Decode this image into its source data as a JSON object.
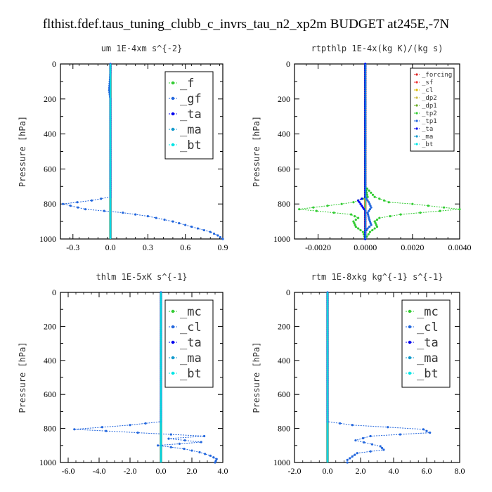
{
  "title": "flthist.fdef.taus_tuning_clubb_c_invrs_tau_n2_xp2m  BUDGET at245E,-7N",
  "chart_data": [
    {
      "type": "line",
      "title": "um   1E-4xm s^{-2}",
      "ylabel": "Pressure [hPa]",
      "xlim": [
        -0.4,
        0.9
      ],
      "ylim": [
        1000,
        0
      ],
      "xticks": [
        -0.3,
        0.0,
        0.3,
        0.6,
        0.9
      ],
      "xtick_labels": [
        "-0.3",
        "0.0",
        "0.3",
        "0.6",
        "0.9"
      ],
      "yticks": [
        0,
        200,
        400,
        600,
        800,
        1000
      ],
      "ytick_labels": [
        "0",
        "200",
        "400",
        "600",
        "800",
        "1000"
      ],
      "legend_position": "top-right",
      "legend_size": "large",
      "series": [
        {
          "name": "_f",
          "color": "#33cc33",
          "y": [
            0,
            1000
          ],
          "x": [
            0,
            0
          ]
        },
        {
          "name": "_gf",
          "color": "#2266dd",
          "y": [
            0,
            50,
            100,
            150,
            200,
            300,
            500,
            700,
            760,
            780,
            800,
            830,
            850,
            870,
            900,
            930,
            960,
            980,
            1000
          ],
          "x": [
            0.0,
            0.0,
            -0.005,
            -0.01,
            0.0,
            0.0,
            0.0,
            0.0,
            0.0,
            -0.15,
            -0.38,
            -0.2,
            0.1,
            0.3,
            0.5,
            0.65,
            0.8,
            0.86,
            0.9
          ]
        },
        {
          "name": "_ta",
          "color": "#0000ee",
          "y": [
            0,
            1000
          ],
          "x": [
            0,
            0
          ]
        },
        {
          "name": "_ma",
          "color": "#1199cc",
          "y": [
            0,
            1000
          ],
          "x": [
            0,
            0
          ]
        },
        {
          "name": "_bt",
          "color": "#00e5e5",
          "y": [
            0,
            1000
          ],
          "x": [
            0,
            0
          ]
        }
      ]
    },
    {
      "type": "line",
      "title": "rtpthlp   1E-4x(kg K)/(kg s)",
      "ylabel": "Pressure [hPa]",
      "xlim": [
        -0.003,
        0.004
      ],
      "ylim": [
        1000,
        0
      ],
      "xticks": [
        -0.002,
        0.0,
        0.002,
        0.004
      ],
      "xtick_labels": [
        "-0.0020",
        "0.0000",
        "0.0020",
        "0.0040"
      ],
      "yticks": [
        0,
        200,
        400,
        600,
        800,
        1000
      ],
      "ytick_labels": [
        "0",
        "200",
        "400",
        "600",
        "800",
        "1000"
      ],
      "legend_position": "top-right",
      "legend_size": "small",
      "series": [
        {
          "name": "_forcing",
          "color": "#dd2222",
          "y": [
            0,
            1000
          ],
          "x": [
            0,
            0
          ]
        },
        {
          "name": "_sf",
          "color": "#ee3333",
          "y": [
            0,
            1000
          ],
          "x": [
            0,
            0
          ]
        },
        {
          "name": "_cl",
          "color": "#ddbb00",
          "y": [
            0,
            1000
          ],
          "x": [
            0,
            0
          ]
        },
        {
          "name": "_dp2",
          "color": "#ccbb44",
          "y": [
            0,
            1000
          ],
          "x": [
            0,
            0
          ]
        },
        {
          "name": "_dp1",
          "color": "#66aa22",
          "y": [
            0,
            1000
          ],
          "x": [
            0,
            0
          ]
        },
        {
          "name": "_tp2",
          "color": "#33cc33",
          "y": [
            0,
            700,
            760,
            790,
            800,
            830,
            860,
            880,
            900,
            930,
            960,
            1000
          ],
          "x": [
            0.0,
            0.0,
            0.0001,
            -0.0005,
            -0.001,
            -0.0028,
            -0.0006,
            -0.0003,
            -0.0005,
            -0.0004,
            -0.0001,
            0.0
          ],
          "x2": [
            0.0,
            0.0,
            0.0004,
            0.001,
            0.002,
            0.004,
            0.0015,
            0.0006,
            0.0004,
            0.0005,
            0.0002,
            0.0
          ]
        },
        {
          "name": "_tp1",
          "color": "#2266dd",
          "y": [
            0,
            760,
            790,
            820,
            850,
            880,
            900,
            920,
            940,
            960,
            1000
          ],
          "x": [
            0.0,
            0.0,
            0.00015,
            0.00025,
            0.0001,
            0.00015,
            0.0002,
            0.00025,
            0.0001,
            0.0,
            0.0
          ]
        },
        {
          "name": "_ta",
          "color": "#0000ee",
          "y": [
            0,
            760,
            780,
            800,
            820,
            840,
            1000
          ],
          "x": [
            0.0,
            0.0,
            -0.0003,
            -0.0002,
            -0.0001,
            0.0,
            0.0
          ]
        },
        {
          "name": "_ma",
          "color": "#1199cc",
          "y": [
            0,
            1000
          ],
          "x": [
            0,
            0
          ]
        },
        {
          "name": "_bt",
          "color": "#00e5e5",
          "y": [
            0,
            1000
          ],
          "x": [
            0,
            0
          ]
        }
      ]
    },
    {
      "type": "line",
      "title": "thlm   1E-5xK s^{-1}",
      "ylabel": "Pressure [hPa]",
      "xlim": [
        -6.5,
        4.0
      ],
      "ylim": [
        1000,
        0
      ],
      "xticks": [
        -6.0,
        -4.0,
        -2.0,
        0.0,
        2.0,
        4.0
      ],
      "xtick_labels": [
        "-6.0",
        "-4.0",
        "-2.0",
        "0.0",
        "2.0",
        "4.0"
      ],
      "yticks": [
        0,
        200,
        400,
        600,
        800,
        1000
      ],
      "ytick_labels": [
        "0",
        "200",
        "400",
        "600",
        "800",
        "1000"
      ],
      "legend_position": "top-right",
      "legend_size": "large",
      "series": [
        {
          "name": "_mc",
          "color": "#33cc33",
          "y": [
            0,
            1000
          ],
          "x": [
            0,
            0
          ]
        },
        {
          "name": "_cl",
          "color": "#2266dd",
          "y": [
            0,
            700,
            760,
            780,
            805,
            825,
            845,
            860,
            880,
            900,
            920,
            940,
            960,
            980,
            1000
          ],
          "x": [
            0.0,
            0.0,
            0.0,
            -2.0,
            -5.6,
            -1.5,
            2.8,
            0.5,
            2.6,
            -0.2,
            1.5,
            2.5,
            3.2,
            3.6,
            3.5
          ]
        },
        {
          "name": "_ta",
          "color": "#0000ee",
          "y": [
            0,
            1000
          ],
          "x": [
            0,
            0
          ]
        },
        {
          "name": "_ma",
          "color": "#1199cc",
          "y": [
            0,
            1000
          ],
          "x": [
            0,
            0
          ]
        },
        {
          "name": "_bt",
          "color": "#00e5e5",
          "y": [
            0,
            1000
          ],
          "x": [
            0,
            0
          ]
        }
      ]
    },
    {
      "type": "line",
      "title": "rtm   1E-8xkg kg^{-1} s^{-1}",
      "ylabel": "Pressure [hPa]",
      "xlim": [
        -2.0,
        8.0
      ],
      "ylim": [
        1000,
        0
      ],
      "xticks": [
        -2.0,
        0.0,
        2.0,
        4.0,
        6.0,
        8.0
      ],
      "xtick_labels": [
        "-2.0",
        "0.0",
        "2.0",
        "4.0",
        "6.0",
        "8.0"
      ],
      "yticks": [
        0,
        200,
        400,
        600,
        800,
        1000
      ],
      "ytick_labels": [
        "0",
        "200",
        "400",
        "600",
        "800",
        "1000"
      ],
      "legend_position": "top-right",
      "legend_size": "large",
      "series": [
        {
          "name": "_mc",
          "color": "#33cc33",
          "y": [
            0,
            1000
          ],
          "x": [
            0,
            0
          ]
        },
        {
          "name": "_cl",
          "color": "#2266dd",
          "y": [
            0,
            700,
            760,
            780,
            805,
            825,
            845,
            870,
            905,
            925,
            945,
            965,
            985,
            1000
          ],
          "x": [
            0.0,
            0.0,
            0.0,
            1.5,
            5.8,
            6.2,
            2.6,
            1.7,
            3.2,
            3.4,
            1.8,
            1.5,
            1.2,
            1.2
          ]
        },
        {
          "name": "_ta",
          "color": "#0000ee",
          "y": [
            0,
            1000
          ],
          "x": [
            0,
            0
          ]
        },
        {
          "name": "_ma",
          "color": "#1199cc",
          "y": [
            0,
            1000
          ],
          "x": [
            0,
            0
          ]
        },
        {
          "name": "_bt",
          "color": "#00e5e5",
          "y": [
            0,
            1000
          ],
          "x": [
            0,
            0
          ]
        }
      ]
    }
  ]
}
